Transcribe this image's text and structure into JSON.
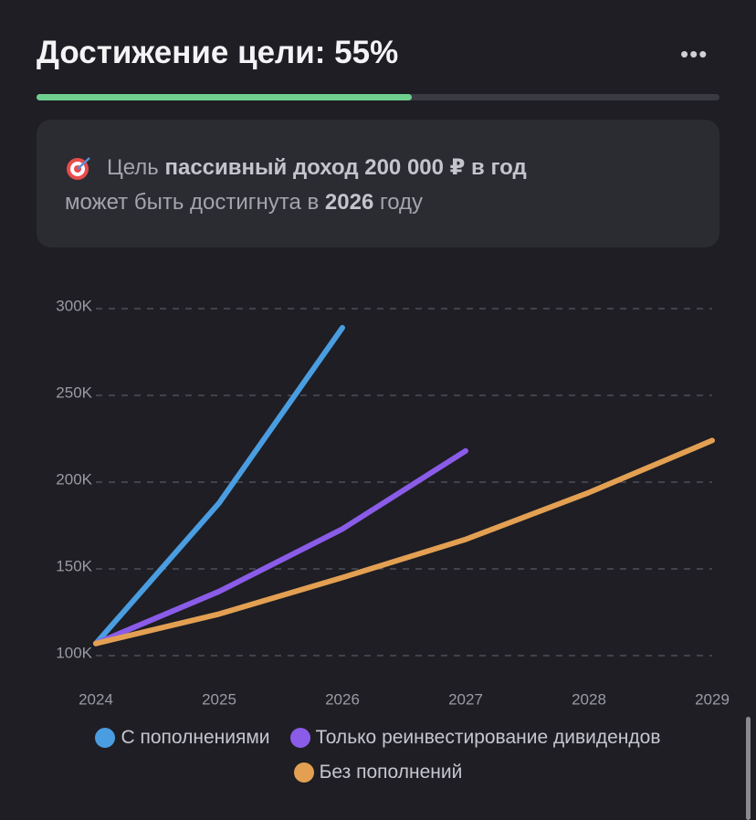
{
  "header": {
    "title": "Достижение цели: 55%",
    "progress": 55
  },
  "info": {
    "prefix": "Цель",
    "goal": "пассивный доход 200 000 ₽ в год",
    "middle": "может быть достигнута в",
    "year": "2026",
    "suffix": "году"
  },
  "chart_data": {
    "type": "line",
    "x": [
      2024,
      2025,
      2026,
      2027,
      2028,
      2029
    ],
    "xlim": [
      2024,
      2029
    ],
    "xticks": [
      2024,
      2025,
      2026,
      2027,
      2028,
      2029
    ],
    "ylim": [
      100000,
      300000
    ],
    "yticks": [
      {
        "value": 100000,
        "label": "100K"
      },
      {
        "value": 150000,
        "label": "150K"
      },
      {
        "value": 200000,
        "label": "200K"
      },
      {
        "value": 250000,
        "label": "250K"
      },
      {
        "value": 300000,
        "label": "300K"
      }
    ],
    "grid": true,
    "series": [
      {
        "name": "С пополнениями",
        "color": "#4a9de0",
        "values": [
          107000,
          188000,
          289000,
          null,
          null,
          null
        ]
      },
      {
        "name": "Только реинвестирование дивидендов",
        "color": "#8a5ce8",
        "values": [
          107000,
          137000,
          173000,
          218000,
          null,
          null
        ]
      },
      {
        "name": "Без пополнений",
        "color": "#e3a052",
        "values": [
          107000,
          124000,
          145000,
          167000,
          194000,
          224000
        ]
      }
    ]
  }
}
